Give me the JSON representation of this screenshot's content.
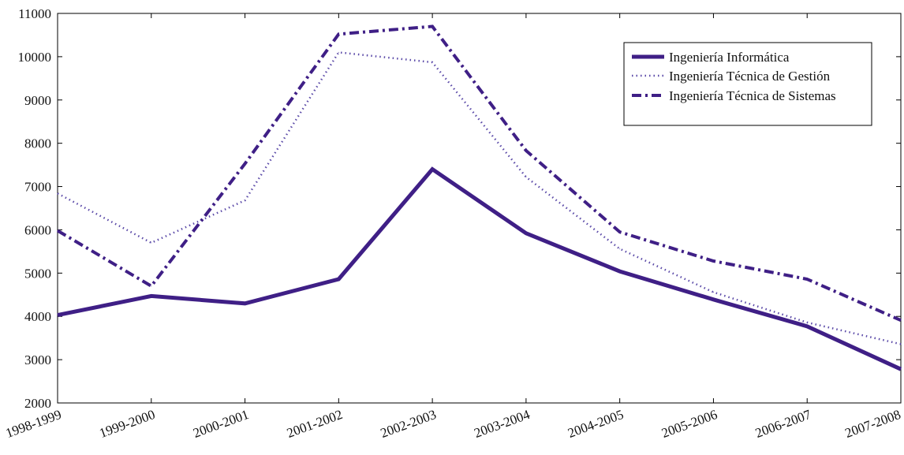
{
  "chart_data": {
    "type": "line",
    "categories": [
      "1998-1999",
      "1999-2000",
      "2000-2001",
      "2001-2002",
      "2002-2003",
      "2003-2004",
      "2004-2005",
      "2005-2006",
      "2006-2007",
      "2007-2008"
    ],
    "ylim": [
      2000,
      11000
    ],
    "yticks": [
      2000,
      3000,
      4000,
      5000,
      6000,
      7000,
      8000,
      9000,
      10000,
      11000
    ],
    "series": [
      {
        "name": "Ingeniería Informática",
        "style": "solid",
        "color": "#3f1f86",
        "values": [
          4030,
          4470,
          4300,
          4860,
          7400,
          5920,
          5040,
          4390,
          3770,
          2780
        ]
      },
      {
        "name": "Ingeniería Técnica de Gestión",
        "style": "dotted",
        "color": "#3f1f86",
        "values": [
          6840,
          5700,
          6680,
          10100,
          9870,
          7220,
          5560,
          4560,
          3860,
          3360
        ]
      },
      {
        "name": "Ingeniería Técnica de Sistemas",
        "style": "dashdot",
        "color": "#3f1f86",
        "values": [
          5980,
          4700,
          7530,
          10520,
          10700,
          7830,
          5950,
          5280,
          4860,
          3910
        ]
      }
    ],
    "legend_position": "top-right",
    "grid": false
  }
}
